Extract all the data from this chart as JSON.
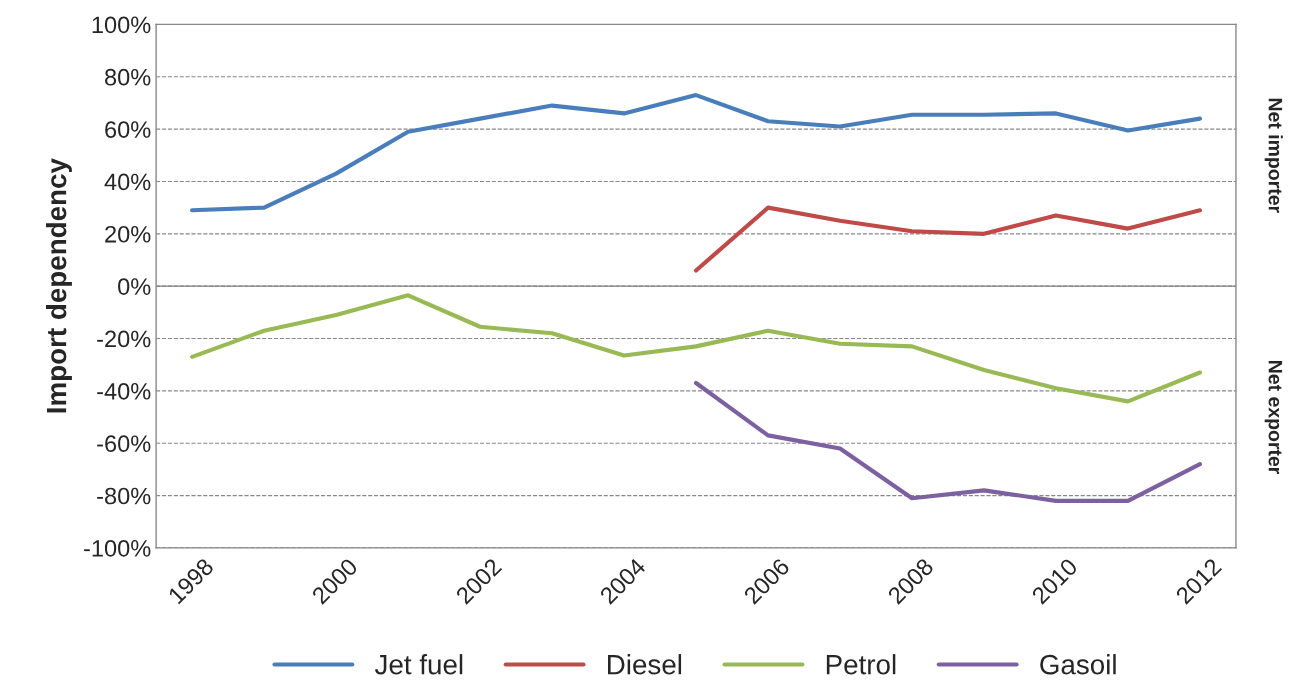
{
  "chart_data": {
    "type": "line",
    "ylabel": "Import dependency",
    "x": [
      1998,
      1999,
      2000,
      2001,
      2002,
      2003,
      2004,
      2005,
      2006,
      2007,
      2008,
      2009,
      2010,
      2011,
      2012
    ],
    "series": [
      {
        "name": "Jet fuel",
        "color": "#4a7ebb",
        "values": [
          29,
          30,
          43,
          59,
          64,
          69,
          66,
          73,
          63,
          61,
          65.5,
          65.5,
          66,
          59.5,
          64
        ]
      },
      {
        "name": "Diesel",
        "color": "#be4b48",
        "values": [
          null,
          null,
          null,
          null,
          null,
          null,
          null,
          6,
          30,
          25,
          21,
          20,
          27,
          22,
          29
        ]
      },
      {
        "name": "Petrol",
        "color": "#98b954",
        "values": [
          -27,
          -17,
          -11,
          -3.5,
          -15.5,
          -18,
          -26.5,
          -23,
          -17,
          -22,
          -23,
          -32,
          -39,
          -44,
          -33
        ]
      },
      {
        "name": "Gasoil",
        "color": "#7d60a0",
        "values": [
          null,
          null,
          null,
          null,
          null,
          null,
          null,
          -37,
          -57,
          -62,
          -81,
          -78,
          -82,
          -82,
          -68
        ]
      }
    ],
    "xlim": [
      1997.5,
      2012.5
    ],
    "xticks": [
      1998,
      2000,
      2002,
      2004,
      2006,
      2008,
      2010,
      2012
    ],
    "ylim": [
      -100,
      100
    ],
    "yticks": [
      {
        "value": -100,
        "label": "-100%"
      },
      {
        "value": -80,
        "label": "-80%"
      },
      {
        "value": -60,
        "label": "-60%"
      },
      {
        "value": -40,
        "label": "-40%"
      },
      {
        "value": -20,
        "label": "-20%"
      },
      {
        "value": 0,
        "label": "0%"
      },
      {
        "value": 20,
        "label": "20%"
      },
      {
        "value": 40,
        "label": "40%"
      },
      {
        "value": 60,
        "label": "60%"
      },
      {
        "value": 80,
        "label": "80%"
      },
      {
        "value": 100,
        "label": "100%"
      }
    ],
    "ref_lines": [
      {
        "axis": "y",
        "value": 0,
        "color": "#868686",
        "line_style": "solid"
      }
    ],
    "annotations": [
      "Net importer",
      "Net exporter"
    ],
    "grid": "y",
    "legend": "bottom",
    "marker": "none",
    "line_style": "solid"
  }
}
